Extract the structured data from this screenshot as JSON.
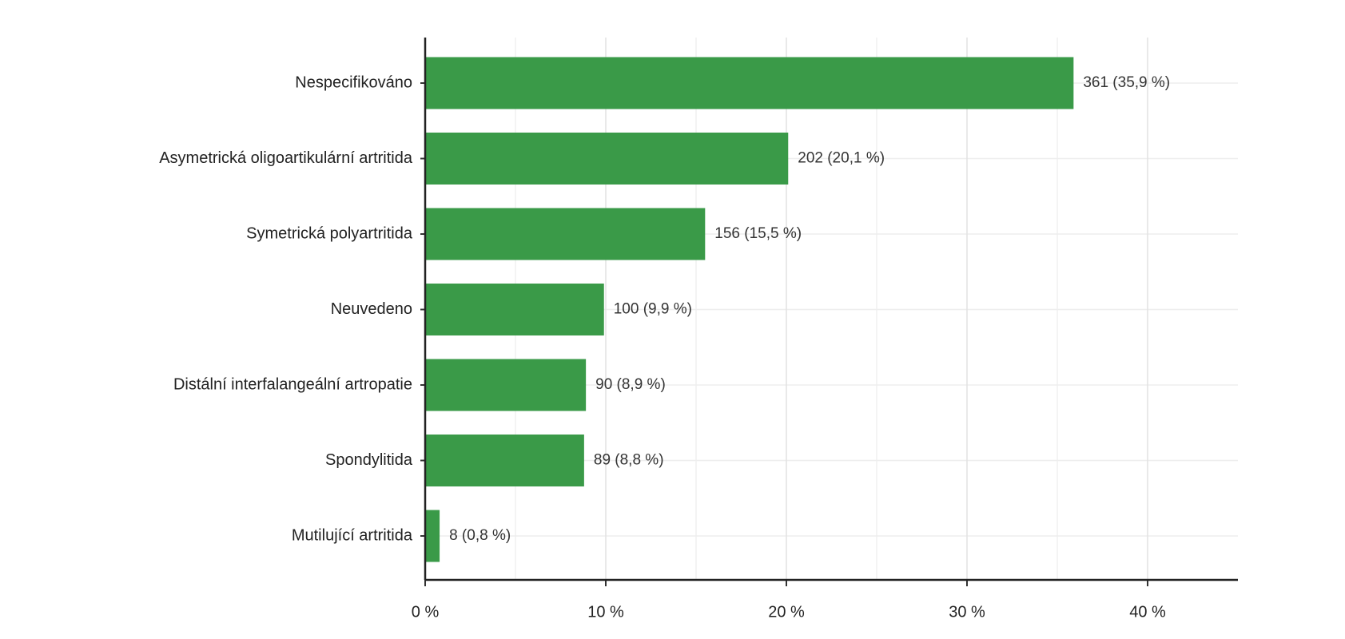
{
  "chart_data": {
    "type": "bar",
    "orientation": "horizontal",
    "categories": [
      "Nespecifikováno",
      "Asymetrická oligoartikulární artritida",
      "Symetrická polyartritida",
      "Neuvedeno",
      "Distální interfalangeální artropatie",
      "Spondylitida",
      "Mutilující artritida"
    ],
    "values": [
      35.9,
      20.1,
      15.5,
      9.9,
      8.9,
      8.8,
      0.8
    ],
    "value_labels": [
      "361 (35,9 %)",
      "202 (20,1 %)",
      "156 (15,5 %)",
      "100 (9,9 %)",
      "90 (8,9 %)",
      "89 (8,8 %)",
      "8 (0,8 %)"
    ],
    "color": "#3a9a48",
    "xlim": [
      0,
      45
    ],
    "xticks": [
      {
        "value": 0,
        "label": "0 %"
      },
      {
        "value": 10,
        "label": "10 %"
      },
      {
        "value": 20,
        "label": "20 %"
      },
      {
        "value": 30,
        "label": "30 %"
      },
      {
        "value": 40,
        "label": "40 %"
      }
    ],
    "minor_xticks": [
      5,
      15,
      25,
      35
    ],
    "grid": true
  }
}
